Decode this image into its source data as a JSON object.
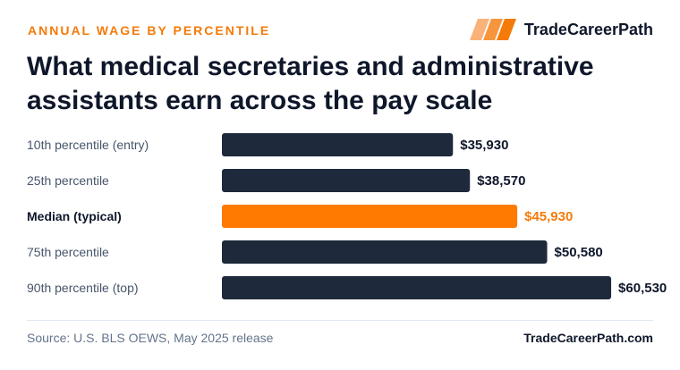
{
  "header": {
    "eyebrow": "ANNUAL WAGE BY PERCENTILE",
    "brand_name": "TradeCareerPath",
    "logo_icon": "three-slanted-stripes-icon",
    "logo_colors": [
      "#f9b27a",
      "#f7953d",
      "#f47b0a"
    ]
  },
  "title": "What medical secretaries and administrative assistants earn across the pay scale",
  "colors": {
    "bar_default": "#1e293b",
    "bar_highlight": "#ff7a00",
    "accent": "#f47b0a"
  },
  "chart_data": {
    "type": "bar",
    "orientation": "horizontal",
    "categories": [
      "10th percentile (entry)",
      "25th percentile",
      "Median (typical)",
      "75th percentile",
      "90th percentile (top)"
    ],
    "values": [
      35930,
      38570,
      45930,
      50580,
      60530
    ],
    "value_labels": [
      "$35,930",
      "$38,570",
      "$45,930",
      "$50,580",
      "$60,530"
    ],
    "highlight_index": 2,
    "xlim": [
      0,
      64000
    ],
    "grid": false,
    "legend": "none"
  },
  "footer": {
    "source": "Source: U.S. BLS OEWS, May 2025 release",
    "site": "TradeCareerPath.com"
  }
}
